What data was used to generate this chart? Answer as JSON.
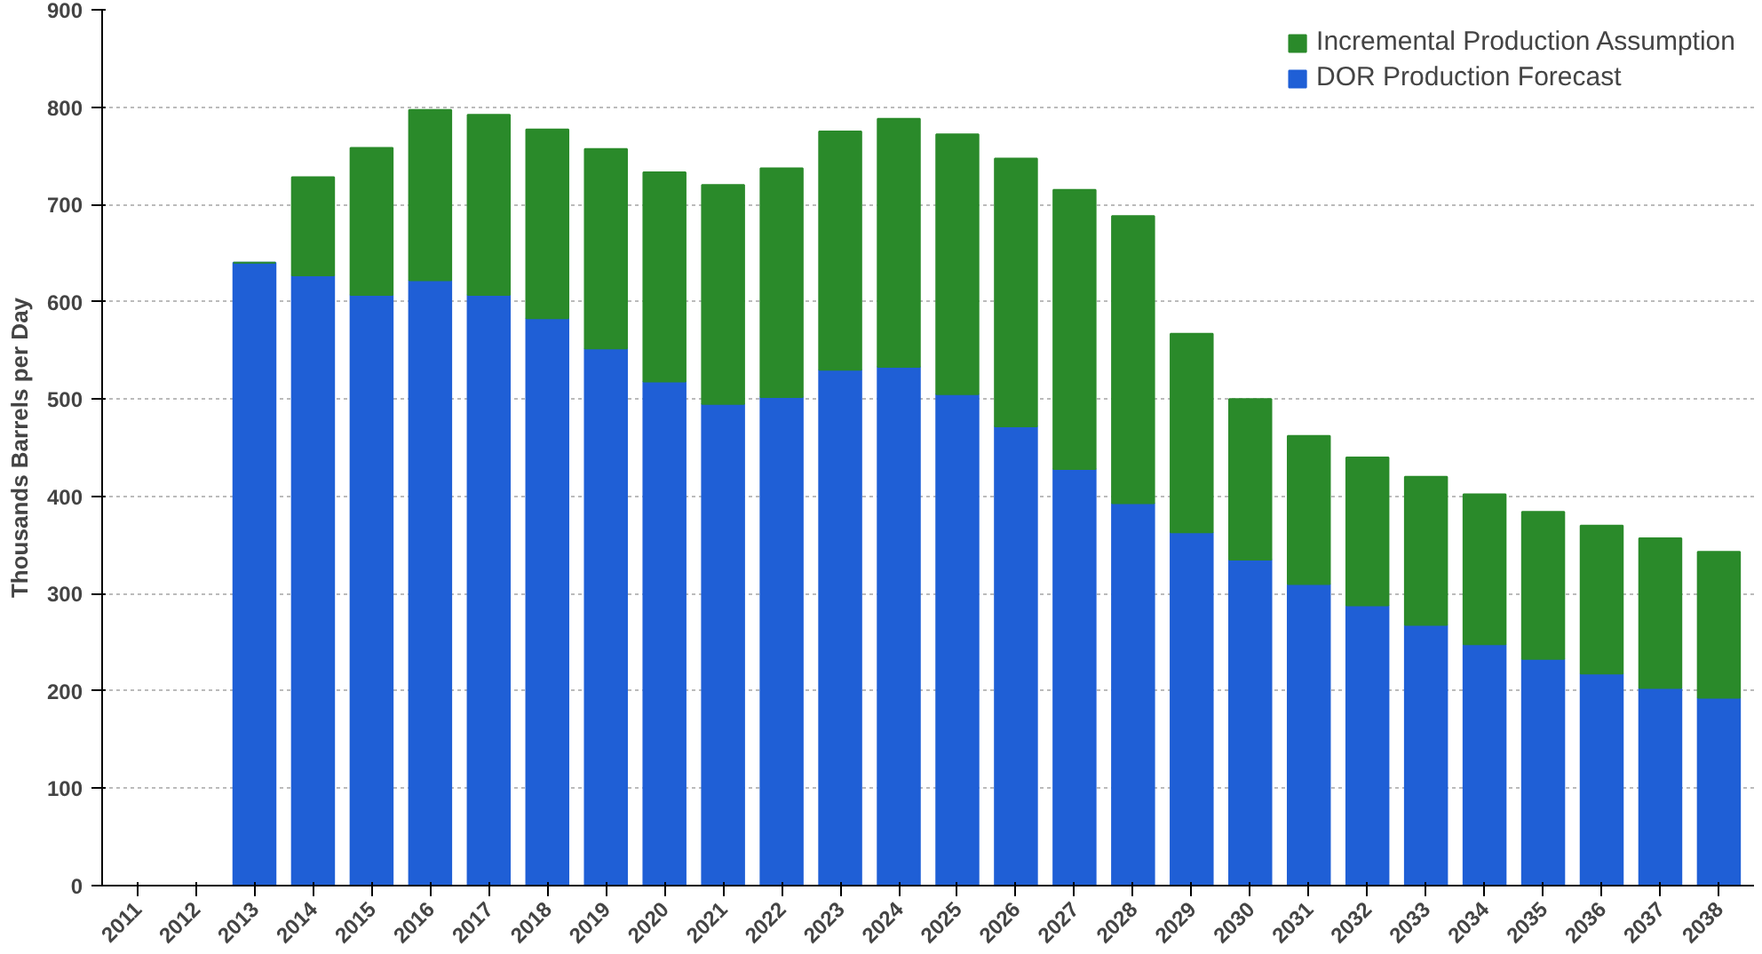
{
  "chart_data": {
    "type": "bar",
    "stacked": true,
    "ylabel": "Thousands Barrels per Day",
    "categories": [
      "2011",
      "2012",
      "2013",
      "2014",
      "2015",
      "2016",
      "2017",
      "2018",
      "2019",
      "2020",
      "2021",
      "2022",
      "2023",
      "2024",
      "2025",
      "2026",
      "2027",
      "2028",
      "2029",
      "2030",
      "2031",
      "2032",
      "2033",
      "2034",
      "2035",
      "2036",
      "2037",
      "2038"
    ],
    "series": [
      {
        "name": "DOR Production Forecast",
        "color": "#1f5fd6",
        "values": [
          null,
          null,
          640,
          627,
          607,
          622,
          607,
          583,
          552,
          518,
          495,
          502,
          530,
          533,
          505,
          472,
          428,
          393,
          363,
          335,
          310,
          288,
          268,
          248,
          233,
          218,
          203,
          193
        ]
      },
      {
        "name": "Incremental Production Assumption",
        "color": "#2a8a2a",
        "values": [
          null,
          null,
          0,
          101,
          151,
          175,
          185,
          194,
          205,
          215,
          225,
          235,
          245,
          255,
          267,
          275,
          287,
          295,
          204,
          165,
          152,
          152,
          152,
          154,
          151,
          152,
          154,
          150
        ]
      }
    ],
    "ylim": [
      0,
      900
    ],
    "yticks": [
      0,
      100,
      200,
      300,
      400,
      500,
      600,
      700,
      800,
      900
    ],
    "grid": "y",
    "legend": "top right"
  }
}
